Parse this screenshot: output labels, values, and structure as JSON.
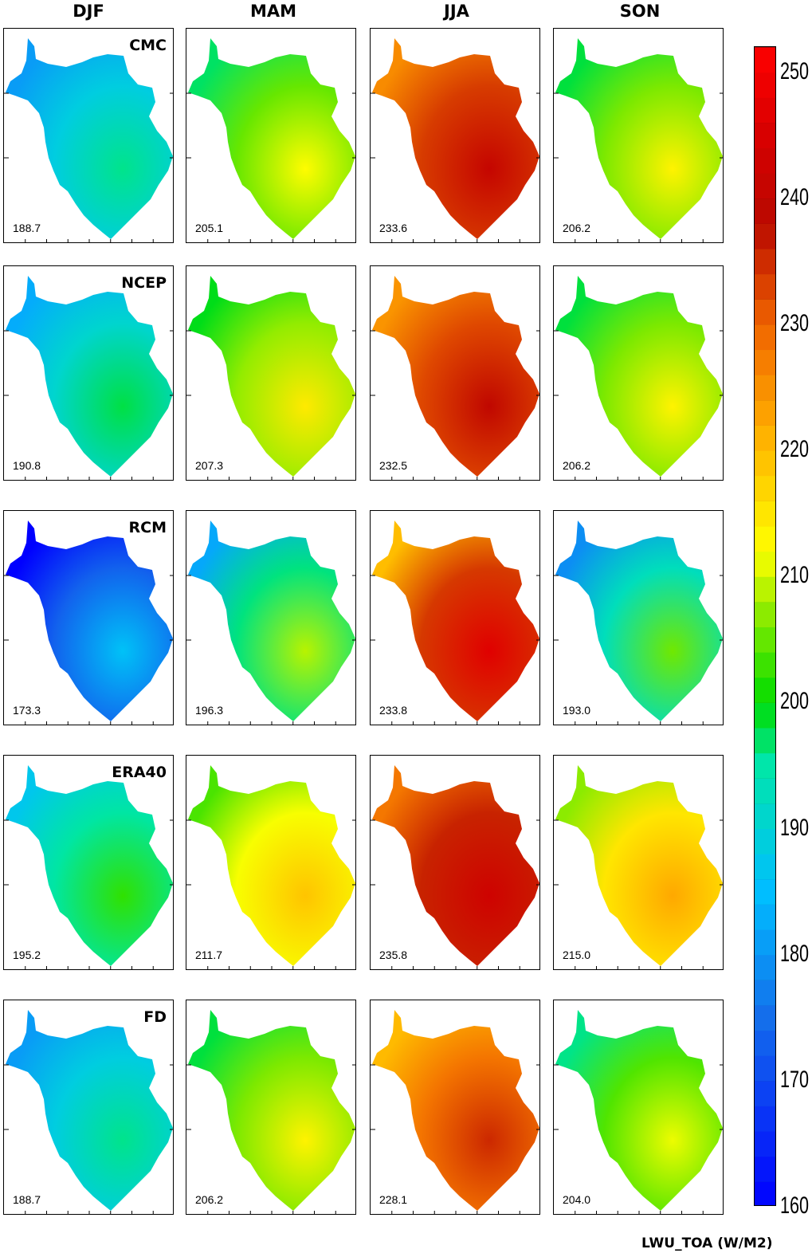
{
  "columns": [
    "DJF",
    "MAM",
    "JJA",
    "SON"
  ],
  "rows": [
    {
      "label": "CMC",
      "values": [
        "188.7",
        "205.1",
        "233.6",
        "206.2"
      ]
    },
    {
      "label": "NCEP",
      "values": [
        "190.8",
        "207.3",
        "232.5",
        "206.2"
      ]
    },
    {
      "label": "RCM",
      "values": [
        "173.3",
        "196.3",
        "233.8",
        "193.0"
      ]
    },
    {
      "label": "ERA40",
      "values": [
        "195.2",
        "211.7",
        "235.8",
        "215.0"
      ]
    },
    {
      "label": "FD",
      "values": [
        "188.7",
        "206.2",
        "228.1",
        "204.0"
      ]
    }
  ],
  "colorbar": {
    "min": 160,
    "max": 252,
    "tick_labels": [
      "250",
      "240",
      "230",
      "220",
      "210",
      "200",
      "190",
      "180",
      "170",
      "160"
    ],
    "units_label": "LWU_TOA (W/M2)"
  }
}
